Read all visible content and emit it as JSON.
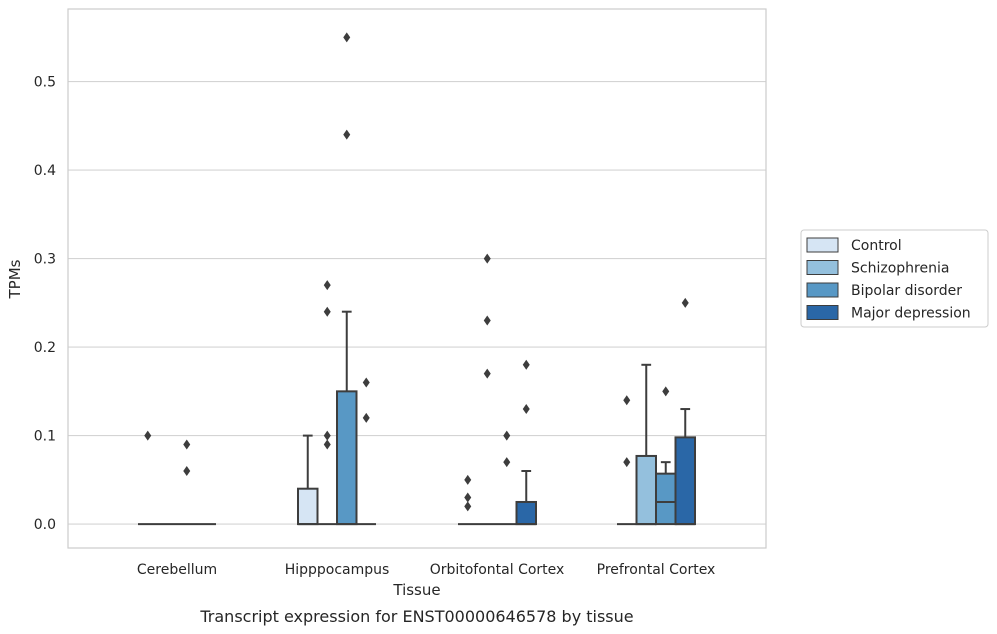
{
  "chart_data": {
    "type": "box",
    "xlabel": "Tissue",
    "ylabel": "TPMs",
    "caption": "Transcript expression for ENST00000646578 by tissue",
    "ylim": [
      -0.027,
      0.582
    ],
    "yticks": [
      "0.0",
      "0.1",
      "0.2",
      "0.3",
      "0.4",
      "0.5"
    ],
    "ytick_values": [
      0.0,
      0.1,
      0.2,
      0.3,
      0.4,
      0.5
    ],
    "grid": true,
    "legend_position": "right",
    "categories": [
      "Cerebellum",
      "Hipppocampus",
      "Orbitofontal Cortex",
      "Prefrontal Cortex"
    ],
    "series": [
      {
        "name": "Control",
        "color": "#d6e5f4",
        "boxes": [
          {
            "whisker_low": 0.0,
            "q1": 0.0,
            "median": 0.0,
            "q3": 0.0,
            "whisker_high": 0.0,
            "outliers": [
              0.1
            ]
          },
          {
            "whisker_low": 0.0,
            "q1": 0.0,
            "median": 0.0,
            "q3": 0.04,
            "whisker_high": 0.1,
            "outliers": []
          },
          {
            "whisker_low": 0.0,
            "q1": 0.0,
            "median": 0.0,
            "q3": 0.0,
            "whisker_high": 0.0,
            "outliers": [
              0.02,
              0.03,
              0.05
            ]
          },
          {
            "whisker_low": 0.0,
            "q1": 0.0,
            "median": 0.0,
            "q3": 0.0,
            "whisker_high": 0.0,
            "outliers": [
              0.07,
              0.14
            ]
          }
        ]
      },
      {
        "name": "Schizophrenia",
        "color": "#94c0dd",
        "boxes": [
          {
            "whisker_low": 0.0,
            "q1": 0.0,
            "median": 0.0,
            "q3": 0.0,
            "whisker_high": 0.0,
            "outliers": []
          },
          {
            "whisker_low": 0.0,
            "q1": 0.0,
            "median": 0.0,
            "q3": 0.0,
            "whisker_high": 0.0,
            "outliers": [
              0.09,
              0.1,
              0.24,
              0.27
            ]
          },
          {
            "whisker_low": 0.0,
            "q1": 0.0,
            "median": 0.0,
            "q3": 0.0,
            "whisker_high": 0.0,
            "outliers": [
              0.17,
              0.23,
              0.3
            ]
          },
          {
            "whisker_low": 0.0,
            "q1": 0.0,
            "median": 0.0,
            "q3": 0.077,
            "whisker_high": 0.18,
            "outliers": []
          }
        ]
      },
      {
        "name": "Bipolar disorder",
        "color": "#5898c5",
        "boxes": [
          {
            "whisker_low": 0.0,
            "q1": 0.0,
            "median": 0.0,
            "q3": 0.0,
            "whisker_high": 0.0,
            "outliers": [
              0.06,
              0.09
            ]
          },
          {
            "whisker_low": 0.0,
            "q1": 0.0,
            "median": 0.0,
            "q3": 0.15,
            "whisker_high": 0.24,
            "outliers": [
              0.44,
              0.55
            ]
          },
          {
            "whisker_low": 0.0,
            "q1": 0.0,
            "median": 0.0,
            "q3": 0.0,
            "whisker_high": 0.0,
            "outliers": [
              0.07,
              0.1
            ]
          },
          {
            "whisker_low": 0.0,
            "q1": 0.0,
            "median": 0.025,
            "q3": 0.057,
            "whisker_high": 0.07,
            "outliers": [
              0.15
            ]
          }
        ]
      },
      {
        "name": "Major depression",
        "color": "#2a67a7",
        "boxes": [
          {
            "whisker_low": 0.0,
            "q1": 0.0,
            "median": 0.0,
            "q3": 0.0,
            "whisker_high": 0.0,
            "outliers": []
          },
          {
            "whisker_low": 0.0,
            "q1": 0.0,
            "median": 0.0,
            "q3": 0.0,
            "whisker_high": 0.0,
            "outliers": [
              0.12,
              0.16
            ]
          },
          {
            "whisker_low": 0.0,
            "q1": 0.0,
            "median": 0.0,
            "q3": 0.025,
            "whisker_high": 0.06,
            "outliers": [
              0.13,
              0.18
            ]
          },
          {
            "whisker_low": 0.0,
            "q1": 0.0,
            "median": 0.0,
            "q3": 0.098,
            "whisker_high": 0.13,
            "outliers": [
              0.25
            ]
          }
        ]
      }
    ]
  }
}
